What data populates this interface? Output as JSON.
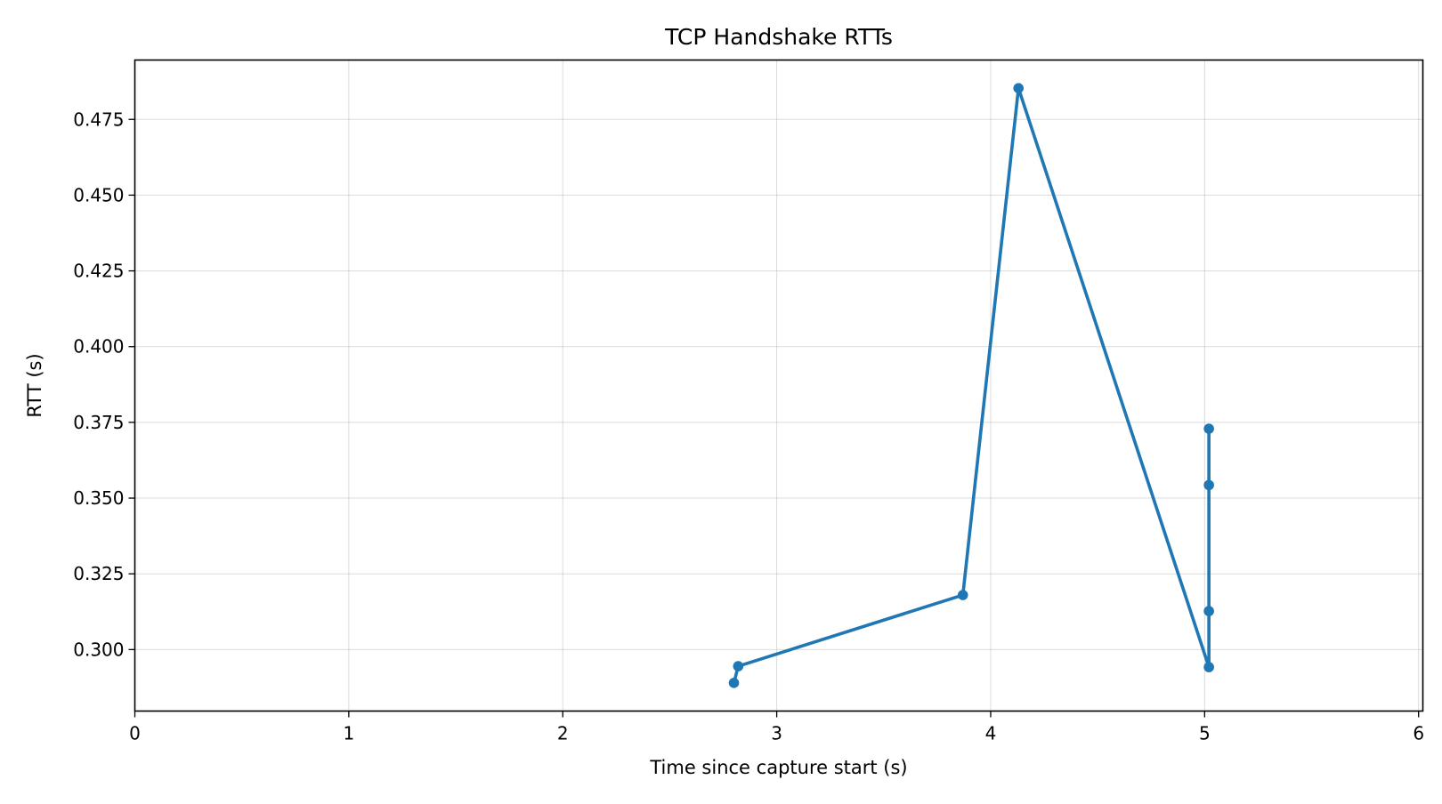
{
  "chart_data": {
    "type": "line",
    "title": "TCP Handshake RTTs",
    "xlabel": "Time since capture start (s)",
    "ylabel": "RTT (s)",
    "xlim": [
      0,
      6.02
    ],
    "ylim": [
      0.2797,
      0.4946
    ],
    "x_ticks": [
      0,
      1,
      2,
      3,
      4,
      5,
      6
    ],
    "y_ticks": [
      0.3,
      0.325,
      0.35,
      0.375,
      0.4,
      0.425,
      0.45,
      0.475
    ],
    "x_tick_labels": [
      "0",
      "1",
      "2",
      "3",
      "4",
      "5",
      "6"
    ],
    "y_tick_labels": [
      "0.300",
      "0.325",
      "0.350",
      "0.375",
      "0.400",
      "0.425",
      "0.450",
      "0.475"
    ],
    "grid": true,
    "series": [
      {
        "color": "#1f77b4",
        "marker": "circle",
        "x": [
          2.8,
          2.82,
          3.87,
          4.13,
          5.02,
          5.02,
          5.02,
          5.02
        ],
        "y": [
          0.289,
          0.2945,
          0.318,
          0.4853,
          0.2942,
          0.3127,
          0.3543,
          0.3729
        ]
      }
    ]
  }
}
